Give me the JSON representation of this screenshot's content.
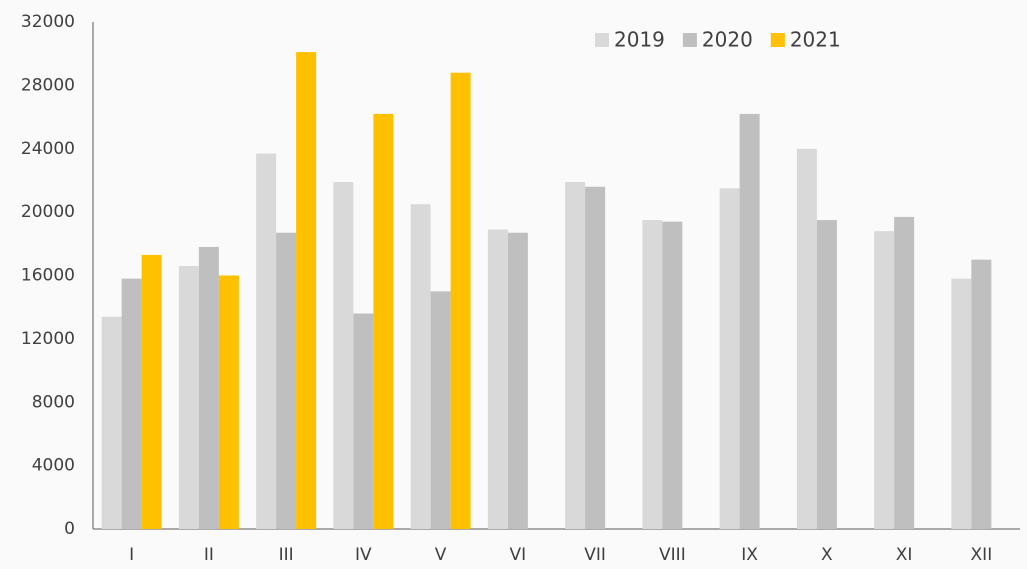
{
  "chart_data": {
    "type": "bar",
    "categories": [
      "I",
      "II",
      "III",
      "IV",
      "V",
      "VI",
      "VII",
      "VIII",
      "IX",
      "X",
      "XI",
      "XII"
    ],
    "series": [
      {
        "name": "2019",
        "color": "#d9d9d9",
        "values": [
          13400,
          16600,
          23700,
          21900,
          20500,
          18900,
          21900,
          19500,
          21500,
          24000,
          18800,
          15800
        ]
      },
      {
        "name": "2020",
        "color": "#bfbfbf",
        "values": [
          15800,
          17800,
          18700,
          13600,
          15000,
          18700,
          21600,
          19400,
          26200,
          19500,
          19700,
          17000
        ]
      },
      {
        "name": "2021",
        "color": "#ffc000",
        "values": [
          17300,
          16000,
          30100,
          26200,
          28800,
          null,
          null,
          null,
          null,
          null,
          null,
          null
        ]
      }
    ],
    "ylim": [
      0,
      32000
    ],
    "yticks": [
      0,
      4000,
      8000,
      12000,
      16000,
      20000,
      24000,
      28000,
      32000
    ],
    "grid": false,
    "legend": "top-right"
  }
}
